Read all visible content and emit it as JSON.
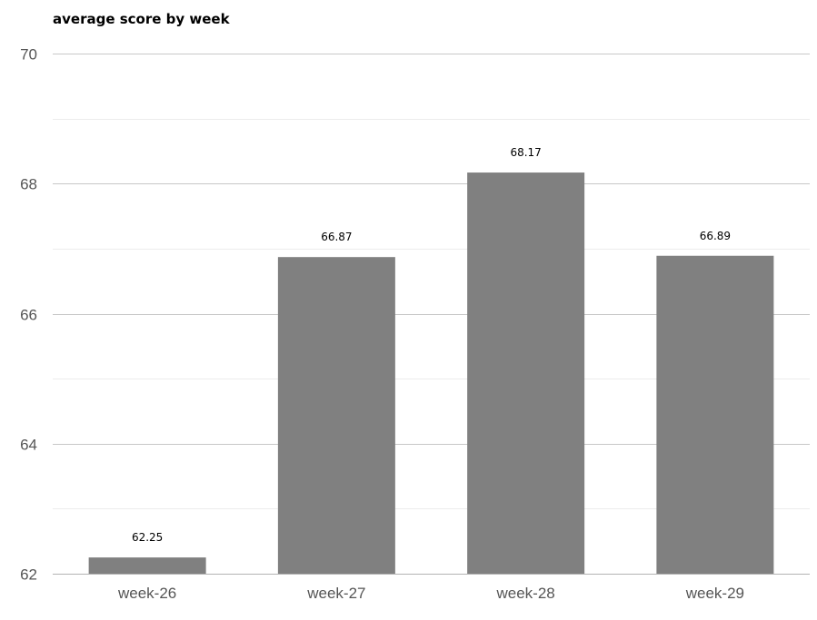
{
  "chart_data": {
    "type": "bar",
    "title": "average score by week",
    "xlabel": "",
    "ylabel": "",
    "categories": [
      "week-26",
      "week-27",
      "week-28",
      "week-29"
    ],
    "values": [
      62.25,
      66.87,
      68.17,
      66.89
    ],
    "data_labels": [
      "62.25",
      "66.87",
      "68.17",
      "66.89"
    ],
    "ylim": [
      62,
      70
    ],
    "y_ticks": [
      62,
      64,
      66,
      68,
      70
    ],
    "y_tick_labels": [
      "62",
      "64",
      "66",
      "68",
      "70"
    ],
    "y_minor_ticks": [
      63,
      65,
      67,
      69
    ],
    "grid": true,
    "legend": "none",
    "colors": {
      "bar": "#808080",
      "major_grid": "#c8c8c8",
      "minor_grid": "#ececec",
      "baseline": "#b4b4b4",
      "tick_text": "#555555",
      "data_label_text": "#000000"
    }
  }
}
